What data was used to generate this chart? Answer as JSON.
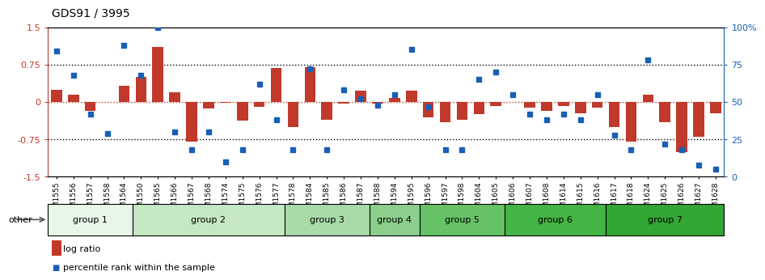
{
  "title": "GDS91 / 3995",
  "samples": [
    "GSM1555",
    "GSM1556",
    "GSM1557",
    "GSM1558",
    "GSM1564",
    "GSM1550",
    "GSM1565",
    "GSM1566",
    "GSM1567",
    "GSM1568",
    "GSM1574",
    "GSM1575",
    "GSM1576",
    "GSM1577",
    "GSM1578",
    "GSM1584",
    "GSM1585",
    "GSM1586",
    "GSM1587",
    "GSM1588",
    "GSM1594",
    "GSM1595",
    "GSM1596",
    "GSM1597",
    "GSM1598",
    "GSM1604",
    "GSM1605",
    "GSM1606",
    "GSM1607",
    "GSM1608",
    "GSM1614",
    "GSM1615",
    "GSM1616",
    "GSM1617",
    "GSM1618",
    "GSM1624",
    "GSM1625",
    "GSM1626",
    "GSM1627",
    "GSM1628"
  ],
  "log_ratio": [
    0.25,
    0.15,
    -0.18,
    0.0,
    0.32,
    0.5,
    1.1,
    0.2,
    -0.8,
    -0.13,
    -0.02,
    -0.38,
    -0.1,
    0.68,
    -0.5,
    0.7,
    -0.35,
    -0.03,
    0.22,
    -0.03,
    0.08,
    0.22,
    -0.3,
    -0.4,
    -0.35,
    -0.25,
    -0.08,
    0.0,
    -0.12,
    -0.18,
    -0.08,
    -0.22,
    -0.12,
    -0.5,
    -0.8,
    0.15,
    -0.4,
    -1.0,
    -0.7,
    -0.22
  ],
  "percentile": [
    84,
    68,
    42,
    29,
    88,
    68,
    100,
    30,
    18,
    30,
    10,
    18,
    62,
    38,
    18,
    72,
    18,
    58,
    52,
    48,
    55,
    85,
    47,
    18,
    18,
    65,
    70,
    55,
    42,
    38,
    42,
    38,
    55,
    28,
    18,
    78,
    22,
    18,
    8,
    5
  ],
  "groups": [
    {
      "label": "group 1",
      "start": 0,
      "end": 4,
      "color": "#e8f5e9"
    },
    {
      "label": "group 2",
      "start": 5,
      "end": 13,
      "color": "#c5e8c2"
    },
    {
      "label": "group 3",
      "start": 14,
      "end": 18,
      "color": "#a8dba8"
    },
    {
      "label": "group 4",
      "start": 19,
      "end": 21,
      "color": "#8ccf8c"
    },
    {
      "label": "group 5",
      "start": 22,
      "end": 26,
      "color": "#66c266"
    },
    {
      "label": "group 6",
      "start": 27,
      "end": 32,
      "color": "#44b444"
    },
    {
      "label": "group 7",
      "start": 33,
      "end": 39,
      "color": "#33a633"
    }
  ],
  "bar_color": "#c0392b",
  "dot_color": "#1a5fb4",
  "right_axis_color": "#1a5fb4",
  "ylim": [
    -1.5,
    1.5
  ],
  "right_ylim": [
    0,
    100
  ],
  "right_ticks": [
    0,
    25,
    50,
    75,
    100
  ],
  "right_tick_labels": [
    "0",
    "25",
    "50",
    "75",
    "100%"
  ],
  "yticks": [
    -1.5,
    -0.75,
    0,
    0.75,
    1.5
  ],
  "ytick_labels": [
    "-1.5",
    "-0.75",
    "0",
    "0.75",
    "1.5"
  ]
}
